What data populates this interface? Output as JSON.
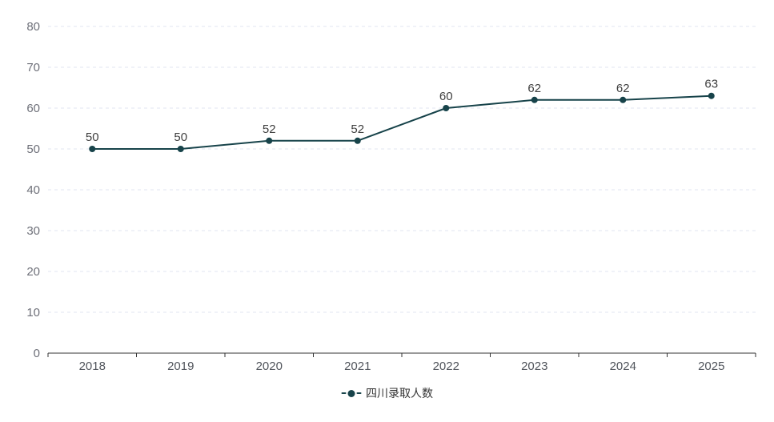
{
  "chart_data": {
    "type": "line",
    "title": "",
    "categories": [
      "2018",
      "2019",
      "2020",
      "2021",
      "2022",
      "2023",
      "2024",
      "2025"
    ],
    "series": [
      {
        "name": "四川录取人数",
        "values": [
          50,
          50,
          52,
          52,
          60,
          62,
          62,
          63
        ]
      }
    ],
    "xlabel": "",
    "ylabel": "",
    "ylim": [
      0,
      80
    ],
    "y_ticks": [
      0,
      10,
      20,
      30,
      40,
      50,
      60,
      70,
      80
    ],
    "grid": "horizontal-dashed",
    "data_labels": "above-points",
    "legend_position": "bottom-center",
    "colors": {
      "line": "#17434a",
      "marker": "#17434a",
      "data_label": "#404040",
      "axis_line": "#333333",
      "y_axis_label": "#6e7079",
      "x_axis_label": "#51555c",
      "gridline": "#e0e6f1",
      "background": "#ffffff"
    }
  },
  "legend": {
    "label": "四川录取人数"
  }
}
